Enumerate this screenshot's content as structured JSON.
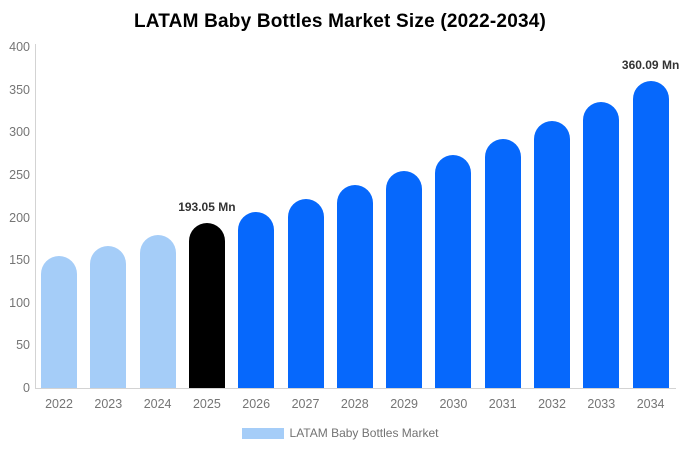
{
  "chart_data": {
    "type": "bar",
    "title": "LATAM Baby Bottles Market Size (2022-2034)",
    "xlabel": "",
    "ylabel": "",
    "categories": [
      "2022",
      "2023",
      "2024",
      "2025",
      "2026",
      "2027",
      "2028",
      "2029",
      "2030",
      "2031",
      "2032",
      "2033",
      "2034"
    ],
    "values": [
      155,
      167,
      180,
      193.05,
      207,
      222,
      238,
      255,
      273,
      292,
      313,
      336,
      360.09
    ],
    "ylim": [
      0,
      400
    ],
    "yticks": [
      0,
      50,
      100,
      150,
      200,
      250,
      300,
      350,
      400
    ],
    "grid": false,
    "legend": {
      "position": "bottom",
      "label": "LATAM Baby Bottles Market"
    },
    "annotations": [
      {
        "category": "2025",
        "text": "193.05 Mn"
      },
      {
        "category": "2034",
        "text": "360.09 Mn"
      }
    ],
    "bar_color_keys": [
      "historical",
      "historical",
      "historical",
      "base_year",
      "forecast",
      "forecast",
      "forecast",
      "forecast",
      "forecast",
      "forecast",
      "forecast",
      "forecast",
      "forecast"
    ],
    "colors": {
      "historical": "#a5cdf8",
      "base_year": "#000000",
      "forecast": "#0668fc",
      "legend_swatch": "#a5cdf8",
      "annotation_text": "#333333",
      "tick_text": "#757575",
      "axis_line": "#d3d3d3",
      "title_text": "#000000",
      "background": "#ffffff"
    }
  }
}
